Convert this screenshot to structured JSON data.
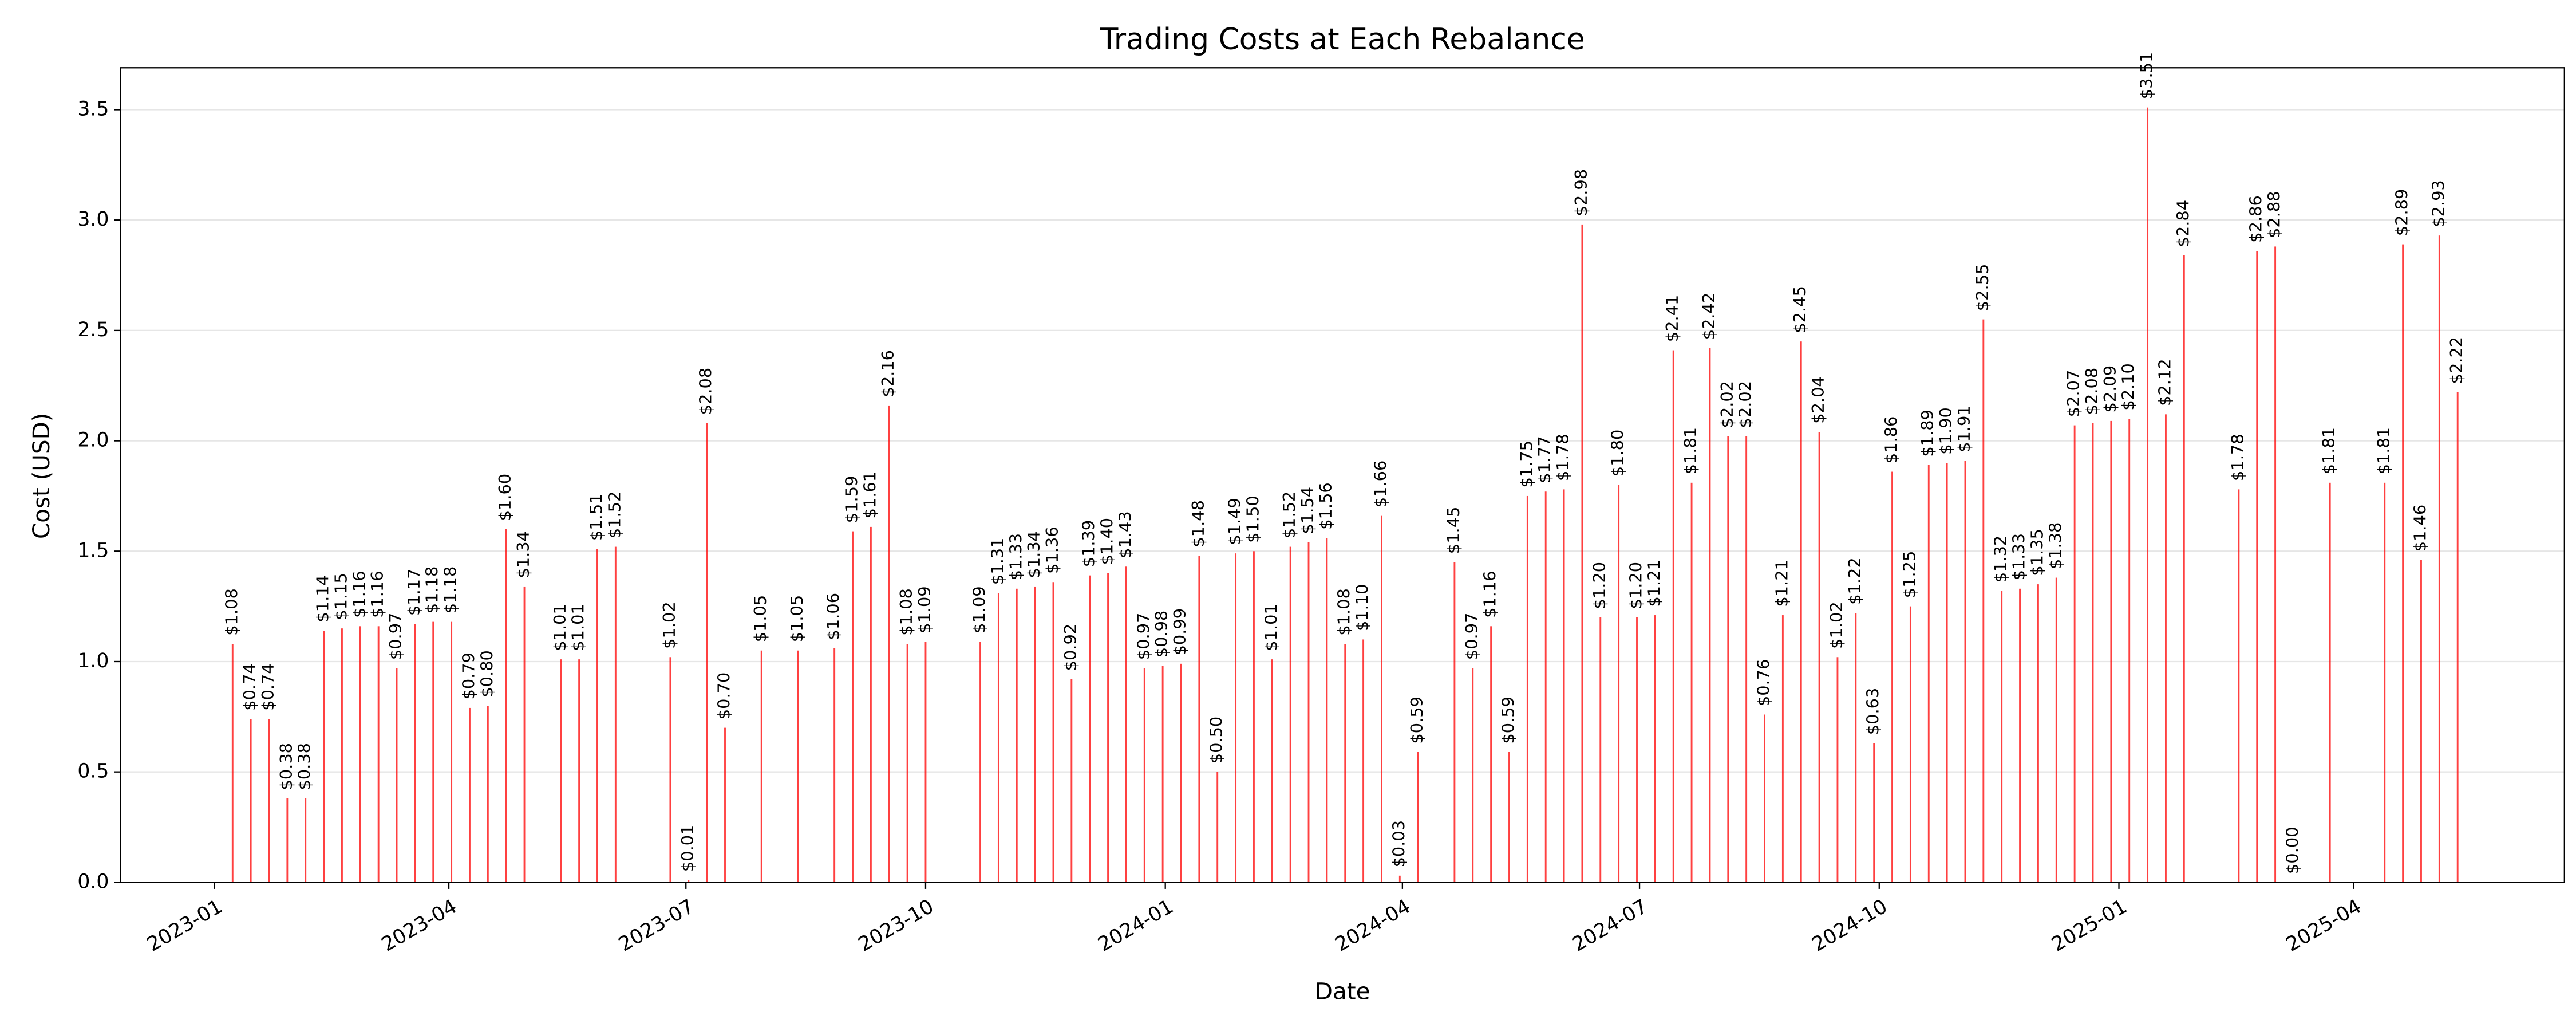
{
  "chart_data": {
    "type": "bar",
    "title": "Trading Costs at Each Rebalance",
    "xlabel": "Date",
    "ylabel": "Cost (USD)",
    "color": "#ff0000",
    "x": [
      7,
      14,
      21,
      28,
      35,
      42,
      49,
      56,
      63,
      70,
      77,
      84,
      91,
      98,
      105,
      112,
      119,
      133,
      140,
      147,
      154,
      175,
      182,
      189,
      196,
      210,
      224,
      238,
      245,
      252,
      259,
      266,
      273,
      294,
      301,
      308,
      315,
      322,
      329,
      336,
      343,
      350,
      357,
      364,
      371,
      378,
      385,
      392,
      399,
      406,
      413,
      420,
      427,
      434,
      441,
      448,
      455,
      462,
      476,
      483,
      490,
      497,
      504,
      511,
      518,
      525,
      532,
      539,
      546,
      553,
      560,
      567,
      574,
      581,
      588,
      595,
      602,
      609,
      616,
      623,
      630,
      637,
      644,
      651,
      658,
      665,
      672,
      679,
      686,
      693,
      700,
      707,
      714,
      721,
      728,
      735,
      742,
      749,
      756,
      777,
      784,
      791,
      798,
      812,
      833,
      840,
      847,
      854,
      861
    ],
    "values": [
      1.08,
      0.74,
      0.74,
      0.38,
      0.38,
      1.14,
      1.15,
      1.16,
      1.16,
      0.97,
      1.17,
      1.18,
      1.18,
      0.79,
      0.8,
      1.6,
      1.34,
      1.01,
      1.01,
      1.51,
      1.52,
      1.02,
      0.01,
      2.08,
      0.7,
      1.05,
      1.05,
      1.06,
      1.59,
      1.61,
      2.16,
      1.08,
      1.09,
      1.09,
      1.31,
      1.33,
      1.34,
      1.36,
      0.92,
      1.39,
      1.4,
      1.43,
      0.97,
      0.98,
      0.99,
      1.48,
      0.5,
      1.49,
      1.5,
      1.01,
      1.52,
      1.54,
      1.56,
      1.08,
      1.1,
      1.66,
      0.03,
      0.59,
      1.45,
      0.97,
      1.16,
      0.59,
      1.75,
      1.77,
      1.78,
      2.98,
      1.2,
      1.8,
      1.2,
      1.21,
      2.41,
      1.81,
      2.42,
      2.02,
      2.02,
      0.76,
      1.21,
      2.45,
      2.04,
      1.02,
      1.22,
      0.63,
      1.86,
      1.25,
      1.89,
      1.9,
      1.91,
      2.55,
      1.32,
      1.33,
      1.35,
      1.38,
      2.07,
      2.08,
      2.09,
      2.1,
      3.51,
      2.12,
      2.84,
      1.78,
      2.86,
      2.88,
      0.0,
      1.81,
      1.81,
      2.89,
      1.46,
      2.93,
      2.22
    ],
    "value_labels": [
      "$1.08",
      "$0.74",
      "$0.74",
      "$0.38",
      "$0.38",
      "$1.14",
      "$1.15",
      "$1.16",
      "$1.16",
      "$0.97",
      "$1.17",
      "$1.18",
      "$1.18",
      "$0.79",
      "$0.80",
      "$1.60",
      "$1.34",
      "$1.01",
      "$1.01",
      "$1.51",
      "$1.52",
      "$1.02",
      "$0.01",
      "$2.08",
      "$0.70",
      "$1.05",
      "$1.05",
      "$1.06",
      "$1.59",
      "$1.61",
      "$2.16",
      "$1.08",
      "$1.09",
      "$1.09",
      "$1.31",
      "$1.33",
      "$1.34",
      "$1.36",
      "$0.92",
      "$1.39",
      "$1.40",
      "$1.43",
      "$0.97",
      "$0.98",
      "$0.99",
      "$1.48",
      "$0.50",
      "$1.49",
      "$1.50",
      "$1.01",
      "$1.52",
      "$1.54",
      "$1.56",
      "$1.08",
      "$1.10",
      "$1.66",
      "$0.03",
      "$0.59",
      "$1.45",
      "$0.97",
      "$1.16",
      "$0.59",
      "$1.75",
      "$1.77",
      "$1.78",
      "$2.98",
      "$1.20",
      "$1.80",
      "$1.20",
      "$1.21",
      "$2.41",
      "$1.81",
      "$2.42",
      "$2.02",
      "$2.02",
      "$0.76",
      "$1.21",
      "$2.45",
      "$2.04",
      "$1.02",
      "$1.22",
      "$0.63",
      "$1.86",
      "$1.25",
      "$1.89",
      "$1.90",
      "$1.91",
      "$2.55",
      "$1.32",
      "$1.33",
      "$1.35",
      "$1.38",
      "$2.07",
      "$2.08",
      "$2.09",
      "$2.10",
      "$3.51",
      "$2.12",
      "$2.84",
      "$1.78",
      "$2.86",
      "$2.88",
      "$0.00",
      "$1.81",
      "$1.81",
      "$2.89",
      "$1.46",
      "$2.93",
      "$2.22"
    ],
    "xlim": [
      -36,
      902
    ],
    "xticks": [
      {
        "value": 0,
        "label": "2023-01"
      },
      {
        "value": 90,
        "label": "2023-04"
      },
      {
        "value": 181,
        "label": "2023-07"
      },
      {
        "value": 273,
        "label": "2023-10"
      },
      {
        "value": 365,
        "label": "2024-01"
      },
      {
        "value": 456,
        "label": "2024-04"
      },
      {
        "value": 547,
        "label": "2024-07"
      },
      {
        "value": 639,
        "label": "2024-10"
      },
      {
        "value": 731,
        "label": "2025-01"
      },
      {
        "value": 821,
        "label": "2025-04"
      }
    ],
    "ylim": [
      0,
      3.69
    ],
    "yticks": [
      {
        "value": 0,
        "label": "0.0"
      },
      {
        "value": 0.5,
        "label": "0.5"
      },
      {
        "value": 1,
        "label": "1.0"
      },
      {
        "value": 1.5,
        "label": "1.5"
      },
      {
        "value": 2,
        "label": "2.0"
      },
      {
        "value": 2.5,
        "label": "2.5"
      },
      {
        "value": 3,
        "label": "3.0"
      },
      {
        "value": 3.5,
        "label": "3.5"
      }
    ],
    "grid": true
  }
}
